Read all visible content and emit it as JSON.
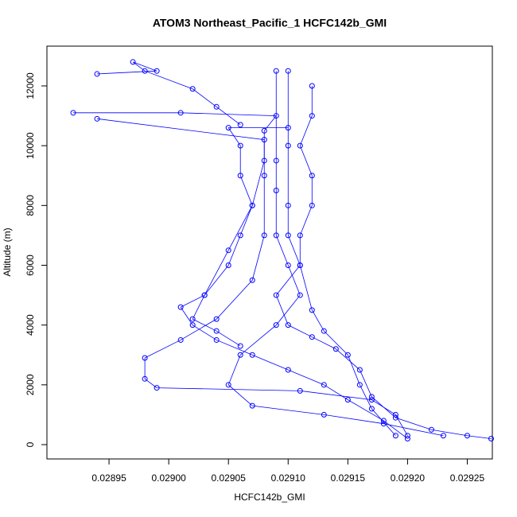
{
  "chart_data": {
    "type": "scatter",
    "title": "ATOM3 Northeast_Pacific_1 HCFC142b_GMI",
    "x_label": "HCFC142b_GMI",
    "y_label": "Altitude (m)",
    "xlim": [
      0.028898,
      0.029271
    ],
    "ylim": [
      -479,
      13330
    ],
    "xticks": [
      0.02895,
      {
        "value": 0.029,
        "label": "0.02900"
      },
      0.02905,
      {
        "value": 0.0291,
        "label": "0.02910"
      },
      0.02915,
      {
        "value": 0.0292,
        "label": "0.02920"
      },
      0.02925
    ],
    "yticks": [
      0,
      2000,
      4000,
      6000,
      8000,
      10000,
      12000
    ],
    "series": [
      {
        "color": "#0000ff",
        "x": [
          0.02927,
          0.02925,
          0.02922,
          0.02919,
          0.02917,
          0.02916,
          0.02914,
          0.02912,
          0.0291,
          0.02909,
          0.02911,
          0.02911,
          0.02912,
          0.02912,
          0.02911,
          0.02912,
          0.02912
        ],
        "values": [
          200,
          300,
          500,
          900,
          1600,
          2500,
          3200,
          3600,
          4000,
          5000,
          6000,
          7000,
          8000,
          9000,
          10000,
          11000,
          12000
        ]
      },
      {
        "color": "#0000ff",
        "x": [
          0.0292,
          0.02918,
          0.02915,
          0.02913,
          0.0291,
          0.02907,
          0.02904,
          0.02902,
          0.02901,
          0.02903,
          0.02905,
          0.02906,
          0.02907,
          0.02906,
          0.02906,
          0.02905,
          0.0291
        ],
        "values": [
          200,
          800,
          1500,
          2000,
          2500,
          3000,
          3500,
          4000,
          4600,
          5000,
          6000,
          7000,
          8000,
          9000,
          10000,
          10600,
          10600
        ]
      },
      {
        "color": "#0000ff",
        "x": [
          0.0292,
          0.02919,
          0.02917,
          0.02911,
          0.02899,
          0.02898,
          0.02898,
          0.02901,
          0.02904,
          0.02907,
          0.02908,
          0.02908,
          0.02908,
          0.02909,
          0.02901,
          0.02892
        ],
        "values": [
          300,
          1000,
          1500,
          1800,
          1900,
          2200,
          2900,
          3500,
          4200,
          5500,
          7000,
          9000,
          10500,
          11000,
          11100,
          11100
        ]
      },
      {
        "color": "#0000ff",
        "x": [
          0.02923,
          0.02918,
          0.02913,
          0.02907,
          0.02905,
          0.02906,
          0.02909,
          0.02911,
          0.0291,
          0.02909,
          0.02909,
          0.02909,
          0.02909
        ],
        "values": [
          300,
          700,
          1000,
          1300,
          2000,
          3000,
          4000,
          5000,
          6000,
          7000,
          8500,
          9500,
          12500
        ]
      },
      {
        "color": "#0000ff",
        "x": [
          0.02906,
          0.02904,
          0.02902,
          0.02898,
          0.02897,
          0.02899,
          0.02894
        ],
        "values": [
          10700,
          11300,
          11900,
          12500,
          12800,
          12500,
          12400
        ]
      },
      {
        "color": "#0000ff",
        "x": [
          0.02919,
          0.02917,
          0.02916,
          0.02915,
          0.02913,
          0.02912,
          0.02911,
          0.0291,
          0.0291,
          0.0291,
          0.0291
        ],
        "values": [
          300,
          1200,
          2000,
          3000,
          3800,
          4500,
          6000,
          7000,
          8000,
          10000,
          12500
        ]
      },
      {
        "color": "#0000ff",
        "x": [
          0.02906,
          0.02904,
          0.02902,
          0.02903,
          0.02905,
          0.02907,
          0.02908,
          0.02908,
          0.02894
        ],
        "values": [
          3300,
          3800,
          4200,
          5000,
          6500,
          8000,
          9500,
          10200,
          10900
        ]
      }
    ]
  }
}
